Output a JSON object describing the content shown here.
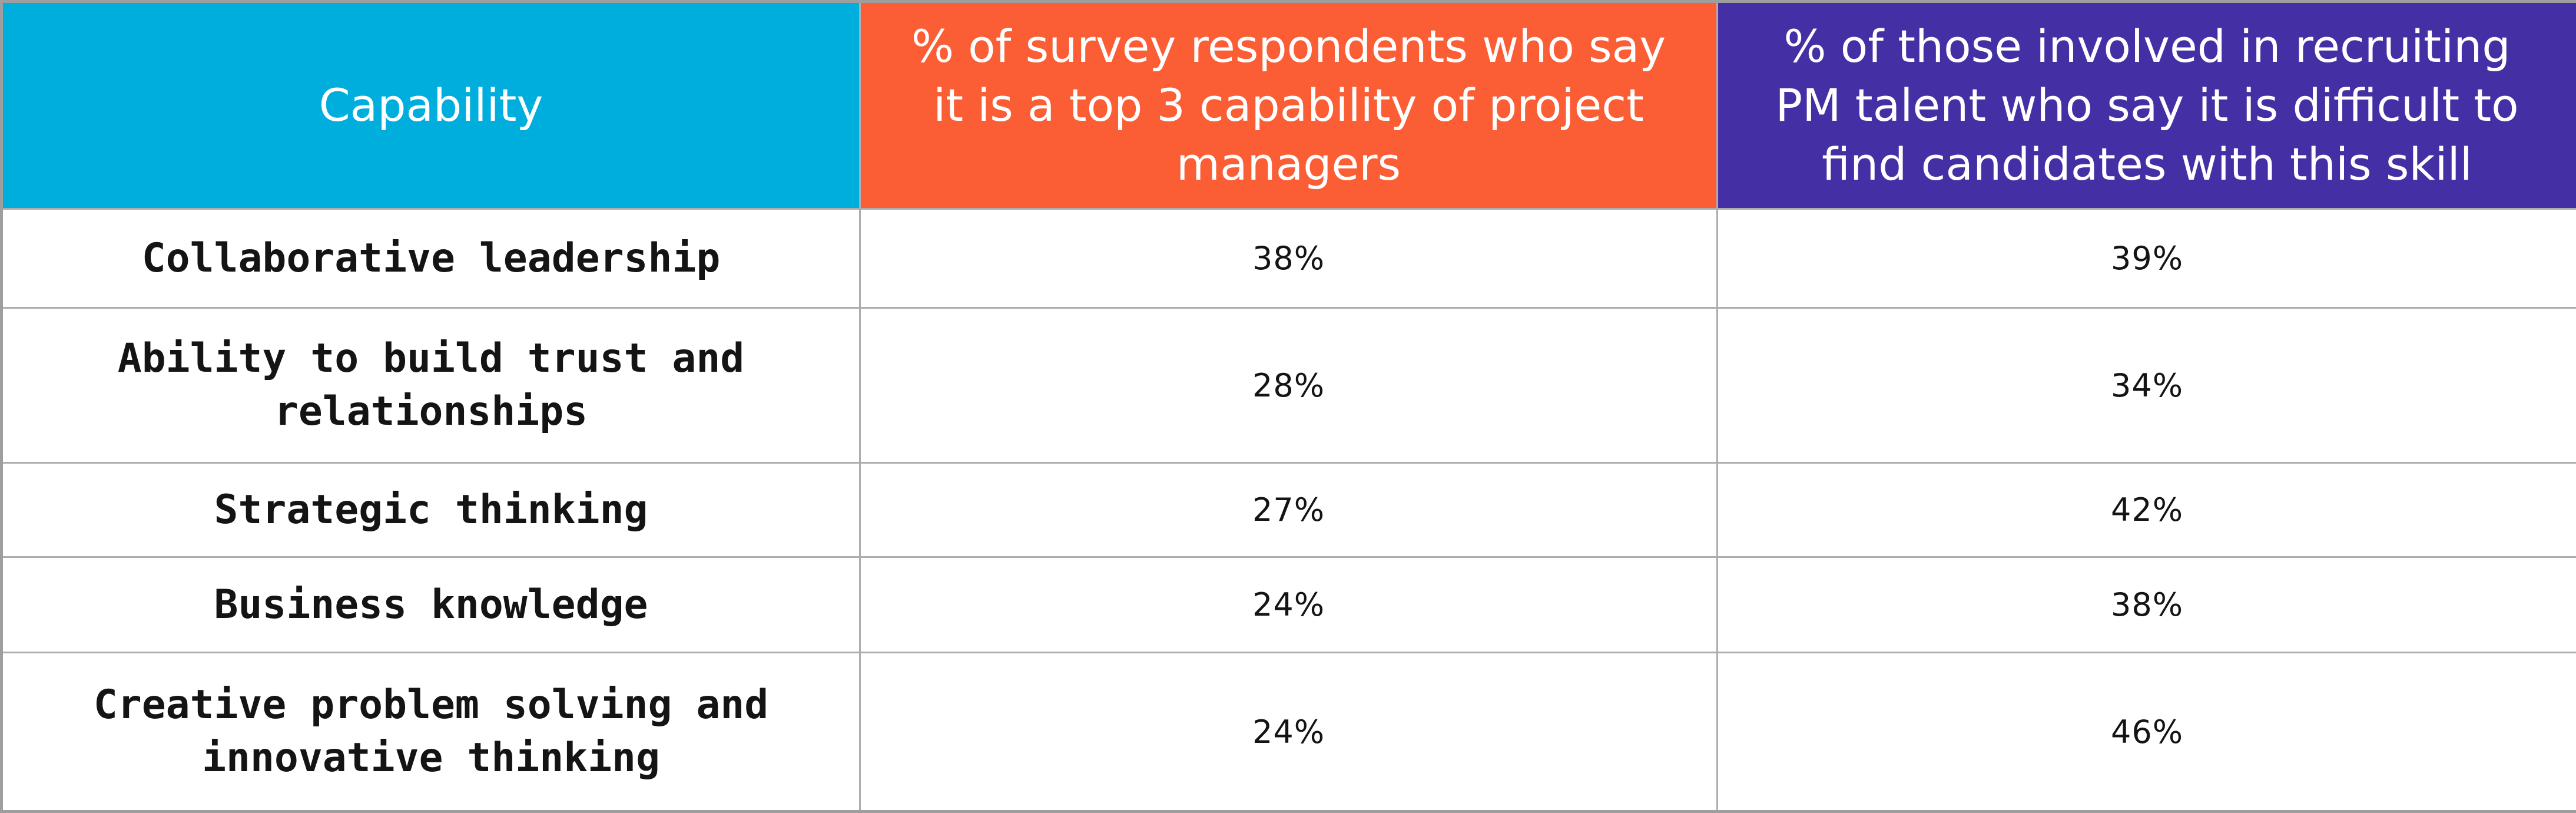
{
  "table": {
    "headers": [
      {
        "id": "capability",
        "label": "Capability",
        "bg": "#00aede"
      },
      {
        "id": "top3",
        "label": "% of survey respondents who say\nit is a top 3 capability of project\nmanagers",
        "bg": "#fb5d35"
      },
      {
        "id": "difficult",
        "label": "% of those involved in recruiting\nPM talent who say it is difficult to\nfind candidates with this skill",
        "bg": "#4430a4"
      }
    ],
    "rows": [
      {
        "capability": "Collaborative leadership",
        "top3": "38%",
        "difficult": "39%"
      },
      {
        "capability": "Ability to build trust and\nrelationships",
        "top3": "28%",
        "difficult": "34%"
      },
      {
        "capability": "Strategic thinking",
        "top3": "27%",
        "difficult": "42%"
      },
      {
        "capability": "Business knowledge",
        "top3": "24%",
        "difficult": "38%"
      },
      {
        "capability": "Creative problem solving and\ninnovative thinking",
        "top3": "24%",
        "difficult": "46%"
      }
    ]
  },
  "colors": {
    "header_capability_bg": "#00aede",
    "header_top3_bg": "#fb5d35",
    "header_difficult_bg": "#4430a4",
    "header_text": "#ffffff",
    "body_text": "#141414",
    "border": "#adadad",
    "outer_border": "#9e9e9e",
    "row_bg": "#ffffff"
  },
  "chart_data": {
    "type": "table",
    "title": "",
    "columns": [
      "Capability",
      "% of survey respondents who say it is a top 3 capability of project managers",
      "% of those involved in recruiting PM talent who say it is difficult to find candidates with this skill"
    ],
    "categories": [
      "Collaborative leadership",
      "Ability to build trust and relationships",
      "Strategic thinking",
      "Business knowledge",
      "Creative problem solving and innovative thinking"
    ],
    "series": [
      {
        "name": "% of survey respondents who say it is a top 3 capability of project managers",
        "values": [
          38,
          28,
          27,
          24,
          24
        ],
        "unit": "%"
      },
      {
        "name": "% of those involved in recruiting PM talent who say it is difficult to find candidates with this skill",
        "values": [
          39,
          34,
          42,
          38,
          46
        ],
        "unit": "%"
      }
    ]
  }
}
